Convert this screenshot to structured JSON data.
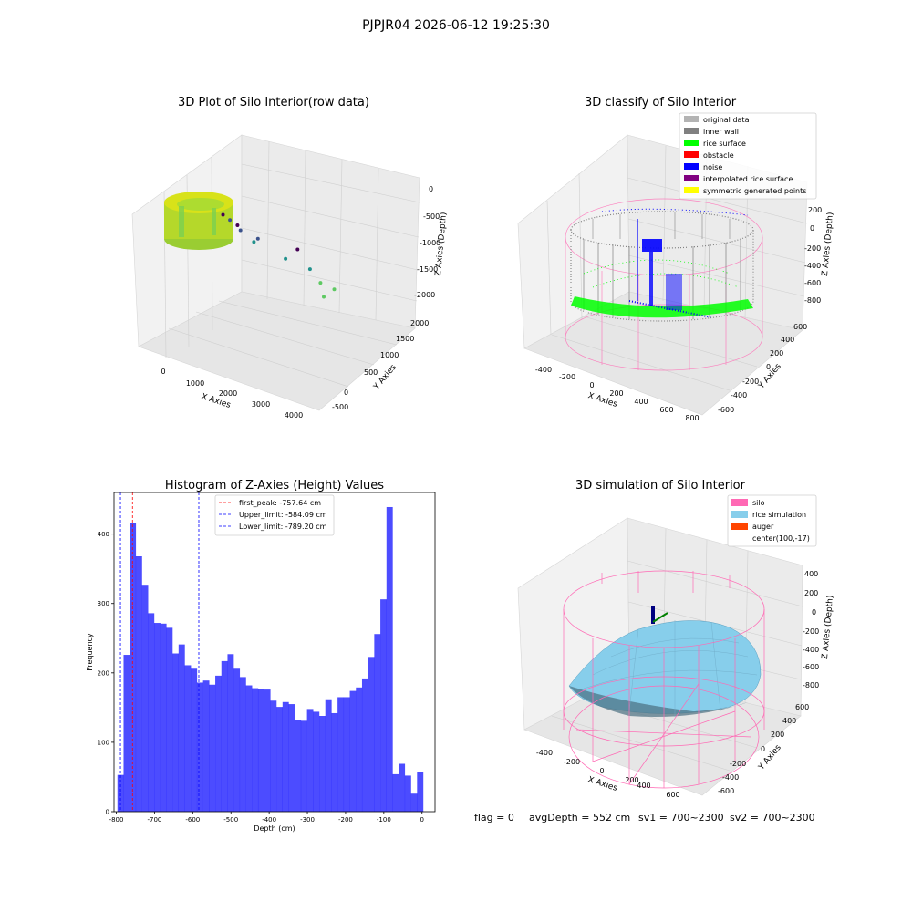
{
  "figure": {
    "suptitle": "PJPJR04 2026-06-12 19:25:30",
    "status_line": {
      "flag": "flag = 0",
      "avg_depth": "avgDepth = 552 cm",
      "sv1": "sv1 = 700~2300",
      "sv2": "sv2 = 700~2300"
    }
  },
  "chart_data": [
    {
      "type": "scatter3d",
      "title": "3D Plot of Silo Interior(row data)",
      "xlabel": "X Axies",
      "ylabel": "Y Axies",
      "zlabel": "Z Axies (Depth)",
      "x_ticks": [
        "0",
        "1000",
        "2000",
        "3000",
        "4000"
      ],
      "y_ticks": [
        "-500",
        "0",
        "500",
        "1000",
        "1500",
        "2000"
      ],
      "z_ticks": [
        "0",
        "-500",
        "-1000",
        "-1500",
        "-2000"
      ],
      "xlim": [
        -600,
        4500
      ],
      "ylim": [
        -700,
        2100
      ],
      "zlim": [
        -2200,
        0
      ],
      "colormap": "viridis",
      "grid": true,
      "outlier_points": [
        {
          "x": 2600,
          "y": 1400,
          "z": -400
        },
        {
          "x": 2800,
          "y": 1500,
          "z": -500
        },
        {
          "x": 2700,
          "y": 1200,
          "z": -700
        },
        {
          "x": 2500,
          "y": 1100,
          "z": -900
        },
        {
          "x": 2100,
          "y": 800,
          "z": -1100
        },
        {
          "x": 1400,
          "y": 600,
          "z": -1300
        },
        {
          "x": 1900,
          "y": 200,
          "z": -1600
        },
        {
          "x": 1600,
          "y": 0,
          "z": -1750
        },
        {
          "x": 1400,
          "y": -100,
          "z": -1900
        },
        {
          "x": 1300,
          "y": -200,
          "z": -2000
        },
        {
          "x": 3600,
          "y": -400,
          "z": -2000
        },
        {
          "x": 2000,
          "y": -500,
          "z": -2100
        }
      ]
    },
    {
      "type": "scatter3d",
      "title": "3D classify of Silo Interior",
      "xlabel": "X Axies",
      "ylabel": "Y Axies",
      "zlabel": "Z Axies (Depth)",
      "x_ticks": [
        "-400",
        "-200",
        "0",
        "200",
        "400",
        "600",
        "800"
      ],
      "y_ticks": [
        "-600",
        "-400",
        "-200",
        "0",
        "200",
        "400",
        "600"
      ],
      "z_ticks": [
        "200",
        "0",
        "-200",
        "-400",
        "-600",
        "-800"
      ],
      "legend_position": "top-right",
      "grid": true,
      "legend": [
        {
          "label": "original data",
          "color": "#b3b3b3"
        },
        {
          "label": "inner wall",
          "color": "#808080"
        },
        {
          "label": "rice surface",
          "color": "#00ff00"
        },
        {
          "label": "obstacle",
          "color": "#ff0000"
        },
        {
          "label": "noise",
          "color": "#0000ff"
        },
        {
          "label": "interpolated rice surface",
          "color": "#800080"
        },
        {
          "label": "symmetric generated points",
          "color": "#ffff00"
        }
      ],
      "silo_color": "#ff69b4"
    },
    {
      "type": "bar",
      "title": "Histogram of Z-Axies (Height) Values",
      "xlabel": "Depth (cm)",
      "ylabel": "Frequency",
      "xlim": [
        -806,
        34
      ],
      "ylim": [
        0,
        460
      ],
      "bin_width": 16.0,
      "bin_start": -797.0,
      "x_ticks": [
        -800,
        -700,
        -600,
        -500,
        -400,
        -300,
        -200,
        -100,
        0
      ],
      "y_ticks": [
        0,
        100,
        200,
        300,
        400
      ],
      "color": "#0000ff",
      "counts": [
        53,
        226,
        416,
        368,
        327,
        286,
        272,
        271,
        265,
        228,
        241,
        211,
        206,
        186,
        189,
        183,
        196,
        217,
        227,
        206,
        194,
        182,
        178,
        177,
        176,
        160,
        151,
        158,
        155,
        132,
        131,
        148,
        144,
        138,
        162,
        142,
        165,
        165,
        174,
        179,
        192,
        223,
        256,
        306,
        439,
        54,
        69,
        52,
        26,
        57
      ],
      "lines": [
        {
          "label": "first_peak: -757.64 cm",
          "x": -757.64,
          "color": "#ff0000"
        },
        {
          "label": "Upper_limit: -584.09 cm",
          "x": -584.09,
          "color": "#0000ff"
        },
        {
          "label": "Lower_limit: -789.20 cm",
          "x": -789.2,
          "color": "#0000ff"
        }
      ],
      "legend_position": "top-center"
    },
    {
      "type": "surface3d",
      "title": "3D simulation of Silo Interior",
      "xlabel": "X Axies",
      "ylabel": "Y Axies",
      "zlabel": "Z Axies (Depth)",
      "x_ticks": [
        "-400",
        "-200",
        "0",
        "200",
        "400",
        "600"
      ],
      "y_ticks": [
        "-600",
        "-400",
        "-200",
        "0",
        "200",
        "400",
        "600"
      ],
      "z_ticks": [
        "400",
        "200",
        "0",
        "-200",
        "-400",
        "-600",
        "-800"
      ],
      "legend_position": "top-right",
      "grid": true,
      "legend": [
        {
          "label": "silo",
          "color": "#ff69b4"
        },
        {
          "label": "rice simulation",
          "color": "#87ceeb"
        },
        {
          "label": "auger",
          "color": "#ff4500"
        },
        {
          "label": "center(100,-17)",
          "color": ""
        }
      ]
    }
  ]
}
